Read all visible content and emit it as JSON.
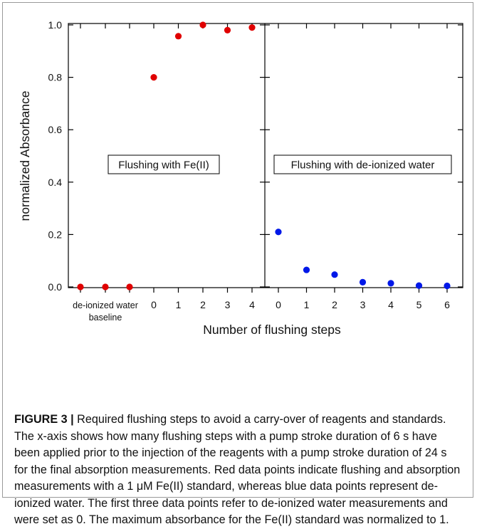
{
  "chart_data": {
    "type": "scatter",
    "ylabel": "normalized Absorbance",
    "xlabel": "Number of flushing steps",
    "ylim": [
      0,
      1
    ],
    "yticks": [
      "0.0",
      "0.2",
      "0.4",
      "0.6",
      "0.8",
      "1.0"
    ],
    "ytick_values": [
      0,
      0.2,
      0.4,
      0.6,
      0.8,
      1.0
    ],
    "grid": false,
    "panels": [
      {
        "annotation": "Flushing with Fe(II)",
        "color": "#e00000",
        "category_label": "de-ionized water",
        "category_label_line2": "baseline",
        "ticks": [
          "0",
          "1",
          "2",
          "3",
          "4"
        ],
        "points": [
          {
            "x": "baseline",
            "y": 0.0
          },
          {
            "x": "baseline",
            "y": 0.0
          },
          {
            "x": "baseline",
            "y": 0.0
          },
          {
            "x": 0,
            "y": 0.8
          },
          {
            "x": 1,
            "y": 0.957
          },
          {
            "x": 2,
            "y": 1.0
          },
          {
            "x": 3,
            "y": 0.98
          },
          {
            "x": 4,
            "y": 0.99
          }
        ]
      },
      {
        "annotation": "Flushing with de-ionized water",
        "color": "#0018e8",
        "ticks": [
          "0",
          "1",
          "2",
          "3",
          "4",
          "5",
          "6"
        ],
        "points": [
          {
            "x": 0,
            "y": 0.21
          },
          {
            "x": 1,
            "y": 0.065
          },
          {
            "x": 2,
            "y": 0.047
          },
          {
            "x": 3,
            "y": 0.018
          },
          {
            "x": 4,
            "y": 0.014
          },
          {
            "x": 5,
            "y": 0.005
          },
          {
            "x": 6,
            "y": 0.004
          }
        ]
      }
    ]
  },
  "caption": {
    "label": "FIGURE 3 |",
    "text": " Required flushing steps to avoid a carry-over of reagents and standards. The x-axis shows how many flushing steps with a pump stroke duration of 6 s have been applied prior to the injection of the reagents with a pump stroke duration of 24 s for the final absorption measurements. Red data points indicate flushing and absorption measurements with a 1 μM Fe(II) standard, whereas blue data points represent de-ionized water. The first three data points refer to de-ionized water measurements and were set as 0. The maximum absorbance for the Fe(II) standard was normalized to 1."
  }
}
